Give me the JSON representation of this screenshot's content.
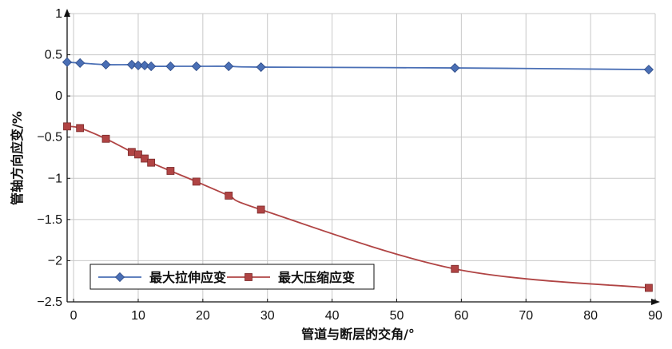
{
  "chart_data": {
    "type": "line",
    "xlabel": "管道与断层的交角/°",
    "ylabel": "管轴方向应变/%",
    "xlim": [
      -1,
      90
    ],
    "ylim": [
      -2.5,
      1
    ],
    "xticks": [
      0,
      10,
      20,
      30,
      40,
      50,
      60,
      70,
      80,
      90
    ],
    "yticks": [
      1,
      0.5,
      0,
      -0.5,
      -1,
      -1.5,
      -2,
      -2.5
    ],
    "ytick_labels": [
      "1",
      "0.5",
      "0",
      "−0.5",
      "−1",
      "−1.5",
      "−2",
      "−2.5"
    ],
    "grid": true,
    "legend_position": "bottom-left",
    "series": [
      {
        "name": "最大拉伸应变",
        "color": "#4a6fb5",
        "marker": "diamond",
        "x": [
          -1,
          1,
          5,
          9,
          10,
          11,
          12,
          15,
          19,
          24,
          29,
          59,
          89
        ],
        "y": [
          0.41,
          0.4,
          0.38,
          0.38,
          0.37,
          0.37,
          0.36,
          0.36,
          0.36,
          0.36,
          0.35,
          0.34,
          0.32
        ]
      },
      {
        "name": "最大压缩应变",
        "color": "#b04444",
        "marker": "square",
        "x": [
          -1,
          1,
          5,
          9,
          10,
          11,
          12,
          15,
          19,
          24,
          29,
          59,
          89
        ],
        "y": [
          -0.37,
          -0.39,
          -0.52,
          -0.68,
          -0.71,
          -0.76,
          -0.81,
          -0.91,
          -1.04,
          -1.21,
          -1.38,
          -2.1,
          -2.33
        ]
      }
    ]
  }
}
